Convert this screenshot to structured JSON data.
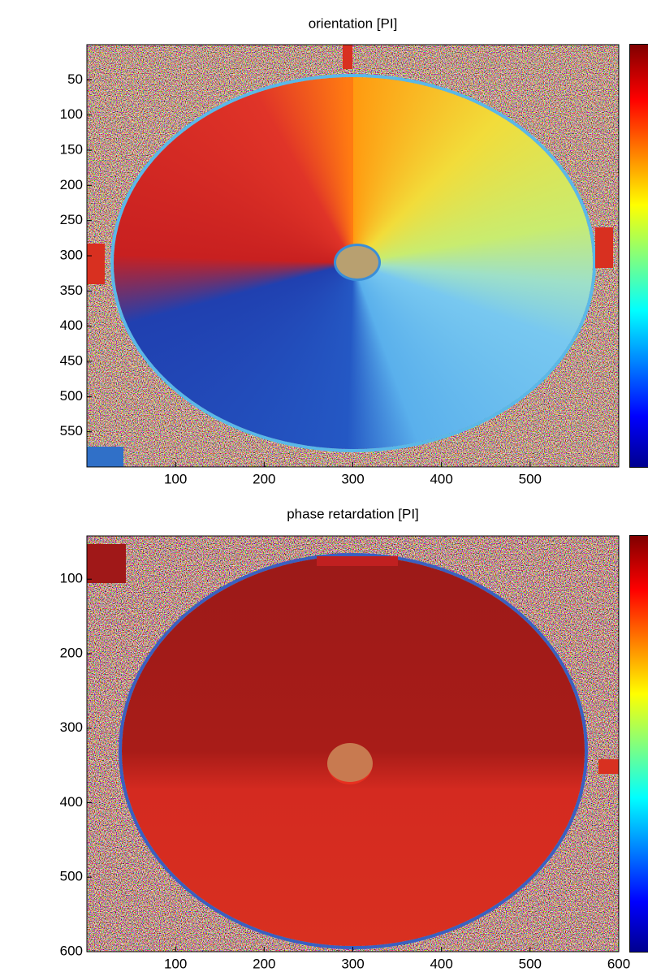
{
  "chart_data": [
    {
      "type": "heatmap",
      "title": "orientation [PI]",
      "xlim": [
        0,
        600
      ],
      "ylim": [
        0,
        600
      ],
      "xticks": [
        100,
        200,
        300,
        400,
        500
      ],
      "yticks": [
        50,
        100,
        150,
        200,
        250,
        300,
        350,
        400,
        450,
        500,
        550
      ],
      "y_reversed": true,
      "colormap": "jet"
    },
    {
      "type": "heatmap",
      "title": "phase retardation [PI]",
      "xlim": [
        0,
        600
      ],
      "ylim": [
        42,
        600
      ],
      "xticks": [
        100,
        200,
        300,
        400,
        500,
        600
      ],
      "yticks": [
        100,
        200,
        300,
        400,
        500,
        600
      ],
      "y_reversed": true,
      "colormap": "jet"
    }
  ]
}
